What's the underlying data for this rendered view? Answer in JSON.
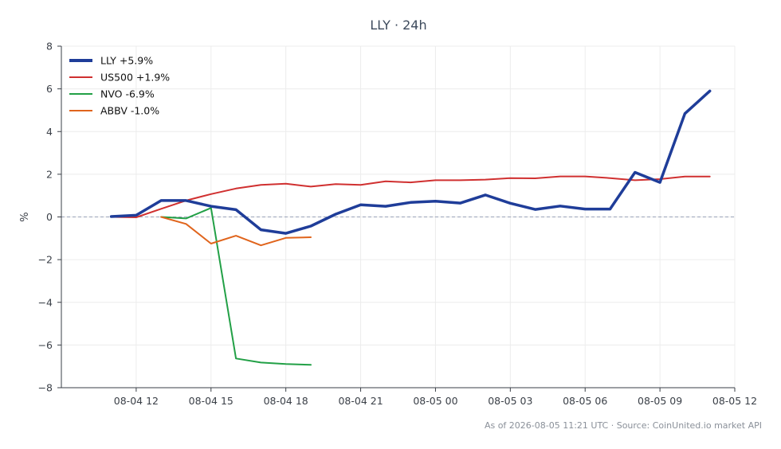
{
  "chart_data": {
    "type": "line",
    "title": "LLY · 24h",
    "ylabel": "%",
    "xlabel": "",
    "ylim": [
      -8,
      8
    ],
    "y_ticks": [
      -8,
      -6,
      -4,
      -2,
      0,
      2,
      4,
      6,
      8
    ],
    "y_tick_labels": [
      "−8",
      "−6",
      "−4",
      "−2",
      "0",
      "2",
      "4",
      "6",
      "8"
    ],
    "x_axis": {
      "start": "08-04 09:00",
      "end": "08-05 12:00"
    },
    "x_ticks": [
      "08-04 12",
      "08-04 15",
      "08-04 18",
      "08-04 21",
      "08-05 00",
      "08-05 03",
      "08-05 06",
      "08-05 09",
      "08-05 12"
    ],
    "grid": true,
    "zero_line": true,
    "legend_position": "top-left",
    "series": [
      {
        "name": "LLY +5.9%",
        "color": "#1f3d99",
        "emphasis": true,
        "x": [
          "08-04 11:00",
          "08-04 12:00",
          "08-04 13:00",
          "08-04 14:00",
          "08-04 15:00",
          "08-04 16:00",
          "08-04 17:00",
          "08-04 18:00",
          "08-04 19:00",
          "08-04 20:00",
          "08-04 21:00",
          "08-04 22:00",
          "08-04 23:00",
          "08-05 00:00",
          "08-05 01:00",
          "08-05 02:00",
          "08-05 03:00",
          "08-05 04:00",
          "08-05 05:00",
          "08-05 06:00",
          "08-05 07:00",
          "08-05 08:00",
          "08-05 09:00",
          "08-05 10:00",
          "08-05 11:00"
        ],
        "values": [
          0.02,
          0.08,
          0.77,
          0.77,
          0.5,
          0.34,
          -0.6,
          -0.77,
          -0.43,
          0.13,
          0.57,
          0.5,
          0.68,
          0.74,
          0.65,
          1.03,
          0.64,
          0.35,
          0.51,
          0.37,
          0.37,
          2.09,
          1.62,
          4.84,
          5.9
        ]
      },
      {
        "name": "US500 +1.9%",
        "color": "#d03030",
        "emphasis": false,
        "x": [
          "08-04 11:00",
          "08-04 12:00",
          "08-04 13:00",
          "08-04 14:00",
          "08-04 15:00",
          "08-04 16:00",
          "08-04 17:00",
          "08-04 18:00",
          "08-04 19:00",
          "08-04 20:00",
          "08-04 21:00",
          "08-04 22:00",
          "08-04 23:00",
          "08-05 00:00",
          "08-05 01:00",
          "08-05 02:00",
          "08-05 03:00",
          "08-05 04:00",
          "08-05 05:00",
          "08-05 06:00",
          "08-05 07:00",
          "08-05 08:00",
          "08-05 09:00",
          "08-05 10:00",
          "08-05 11:00"
        ],
        "values": [
          0.0,
          -0.02,
          0.38,
          0.77,
          1.07,
          1.33,
          1.5,
          1.56,
          1.42,
          1.54,
          1.5,
          1.67,
          1.62,
          1.72,
          1.72,
          1.75,
          1.82,
          1.81,
          1.9,
          1.9,
          1.82,
          1.72,
          1.77,
          1.89,
          1.89
        ]
      },
      {
        "name": "NVO -6.9%",
        "color": "#22a046",
        "emphasis": false,
        "x": [
          "08-04 13:00",
          "08-04 14:00",
          "08-04 15:00",
          "08-04 16:00",
          "08-04 17:00",
          "08-04 18:00",
          "08-04 19:00"
        ],
        "values": [
          0.0,
          -0.07,
          0.42,
          -6.63,
          -6.82,
          -6.89,
          -6.93
        ]
      },
      {
        "name": "ABBV -1.0%",
        "color": "#e0641c",
        "emphasis": false,
        "x": [
          "08-04 13:00",
          "08-04 14:00",
          "08-04 15:00",
          "08-04 16:00",
          "08-04 17:00",
          "08-04 18:00",
          "08-04 19:00"
        ],
        "values": [
          0.0,
          -0.33,
          -1.25,
          -0.88,
          -1.33,
          -0.98,
          -0.95
        ]
      }
    ]
  },
  "footer": "As of 2026-08-05 11:21 UTC · Source: CoinUnited.io market API"
}
